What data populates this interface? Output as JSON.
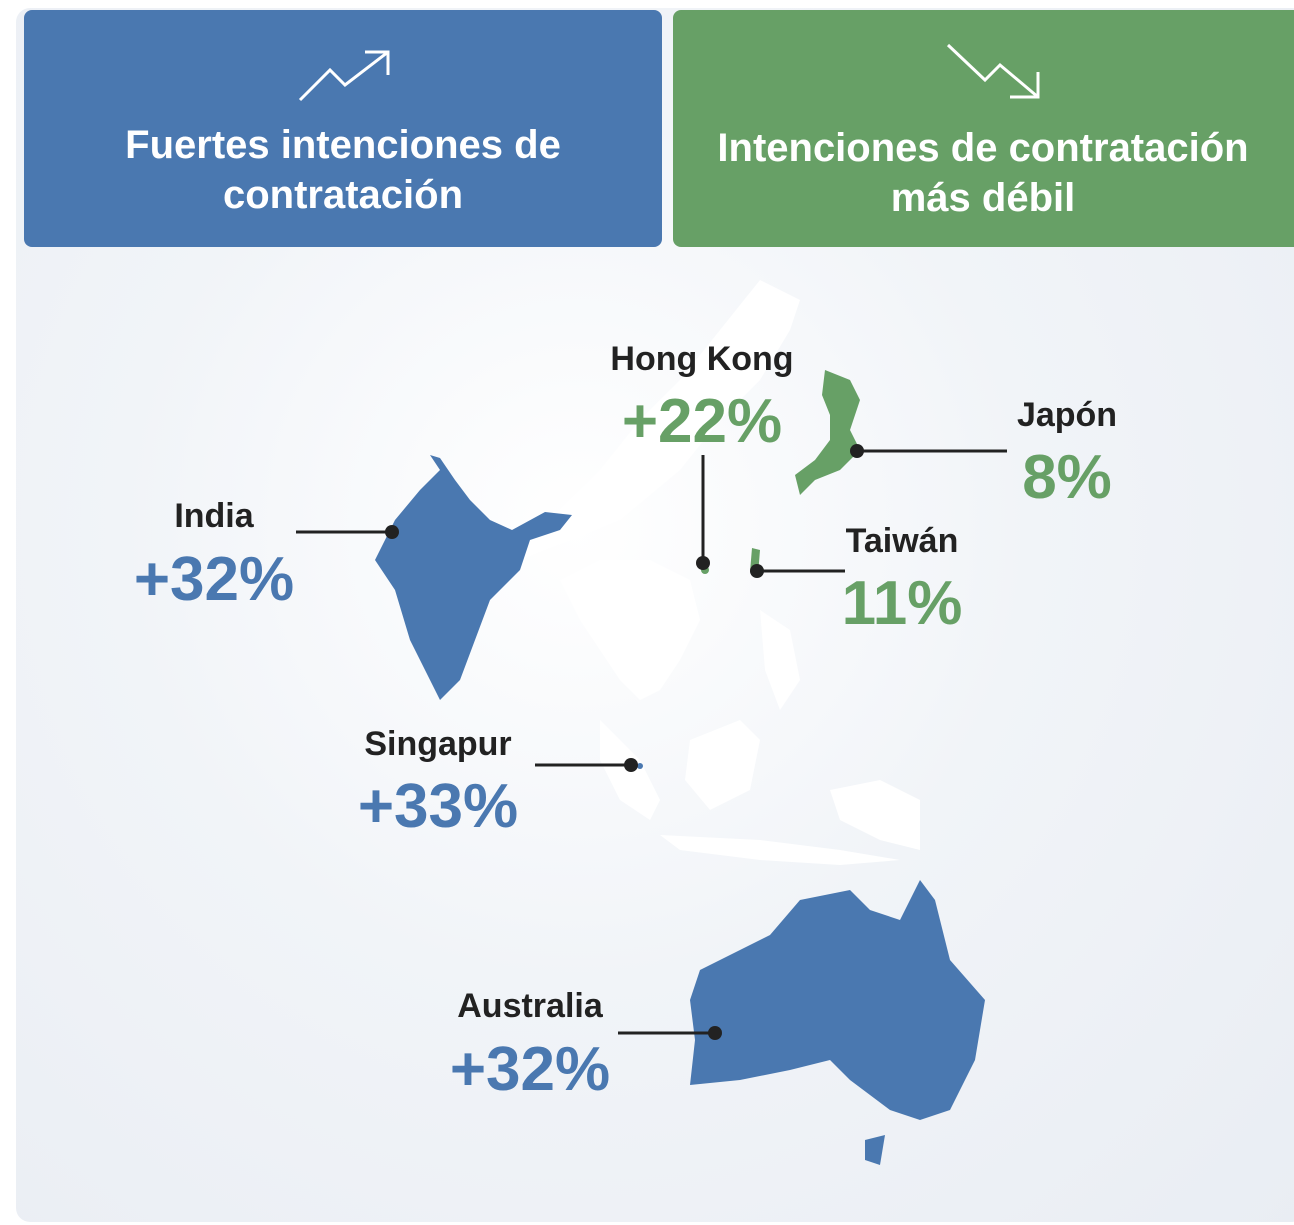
{
  "headers": [
    {
      "title": "Fuertes intenciones de contratación",
      "color": "#4a78b0"
    },
    {
      "title": "Intenciones de contratación más débil",
      "color": "#67a066"
    }
  ],
  "regions": [
    {
      "name": "Hong Kong",
      "value": "+22%",
      "color": "#67a066"
    },
    {
      "name": "Japón",
      "value": "8%",
      "color": "#67a066"
    },
    {
      "name": "India",
      "value": "+32%",
      "color": "#4a78b0"
    },
    {
      "name": "Taiwán",
      "value": "11%",
      "color": "#67a066"
    },
    {
      "name": "Singapur",
      "value": "+33%",
      "color": "#4a78b0"
    },
    {
      "name": "Australia",
      "value": "+32%",
      "color": "#4a78b0"
    }
  ]
}
